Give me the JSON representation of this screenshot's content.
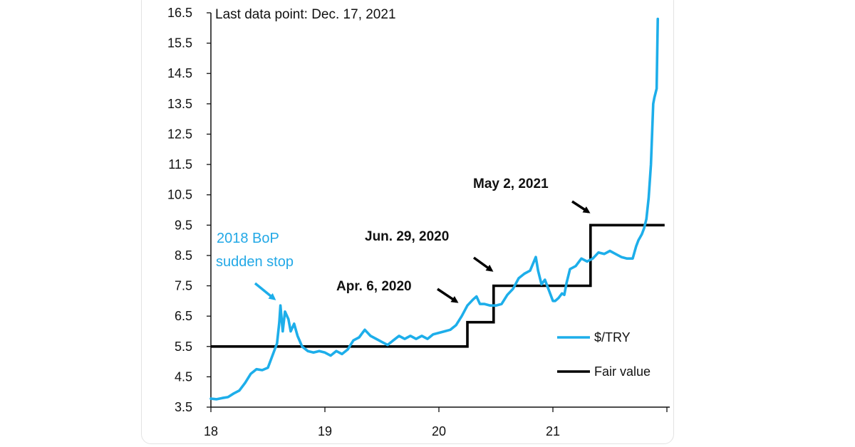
{
  "colors": {
    "series_try": "#1daeea",
    "series_fair": "#000000",
    "annotation_blue": "#22a8e6",
    "axis": "#111111"
  },
  "chart_data": {
    "type": "line",
    "title": "",
    "note": "Last data point: Dec. 17, 2021",
    "xlabel": "",
    "ylabel": "",
    "xlim": [
      18,
      22
    ],
    "ylim": [
      3.5,
      16.5
    ],
    "yticks": [
      "16.5",
      "15.5",
      "14.5",
      "13.5",
      "12.5",
      "11.5",
      "10.5",
      "9.5",
      "8.5",
      "7.5",
      "6.5",
      "5.5",
      "4.5",
      "3.5"
    ],
    "yticks_values": [
      16.5,
      15.5,
      14.5,
      13.5,
      12.5,
      11.5,
      10.5,
      9.5,
      8.5,
      7.5,
      6.5,
      5.5,
      4.5,
      3.5
    ],
    "xticks": [
      "18",
      "19",
      "20",
      "21"
    ],
    "xticks_values": [
      18,
      19,
      20,
      21
    ],
    "grid": false,
    "legend_position": "bottom-right",
    "series": [
      {
        "name": "$/TRY",
        "color": "#1daeea",
        "points": [
          [
            18.0,
            3.78
          ],
          [
            18.05,
            3.76
          ],
          [
            18.1,
            3.8
          ],
          [
            18.15,
            3.83
          ],
          [
            18.2,
            3.95
          ],
          [
            18.25,
            4.05
          ],
          [
            18.3,
            4.3
          ],
          [
            18.35,
            4.6
          ],
          [
            18.4,
            4.75
          ],
          [
            18.45,
            4.72
          ],
          [
            18.5,
            4.8
          ],
          [
            18.55,
            5.3
          ],
          [
            18.58,
            5.6
          ],
          [
            18.6,
            6.3
          ],
          [
            18.61,
            6.85
          ],
          [
            18.63,
            6.0
          ],
          [
            18.65,
            6.65
          ],
          [
            18.68,
            6.4
          ],
          [
            18.7,
            6.0
          ],
          [
            18.73,
            6.25
          ],
          [
            18.76,
            5.85
          ],
          [
            18.8,
            5.5
          ],
          [
            18.85,
            5.35
          ],
          [
            18.9,
            5.3
          ],
          [
            18.95,
            5.35
          ],
          [
            19.0,
            5.3
          ],
          [
            19.05,
            5.2
          ],
          [
            19.1,
            5.35
          ],
          [
            19.15,
            5.25
          ],
          [
            19.2,
            5.4
          ],
          [
            19.25,
            5.7
          ],
          [
            19.3,
            5.8
          ],
          [
            19.35,
            6.05
          ],
          [
            19.4,
            5.85
          ],
          [
            19.45,
            5.75
          ],
          [
            19.5,
            5.65
          ],
          [
            19.55,
            5.55
          ],
          [
            19.6,
            5.7
          ],
          [
            19.65,
            5.85
          ],
          [
            19.7,
            5.75
          ],
          [
            19.75,
            5.85
          ],
          [
            19.8,
            5.75
          ],
          [
            19.85,
            5.85
          ],
          [
            19.9,
            5.75
          ],
          [
            19.95,
            5.9
          ],
          [
            20.0,
            5.95
          ],
          [
            20.05,
            6.0
          ],
          [
            20.1,
            6.05
          ],
          [
            20.15,
            6.2
          ],
          [
            20.2,
            6.5
          ],
          [
            20.25,
            6.85
          ],
          [
            20.3,
            7.05
          ],
          [
            20.33,
            7.15
          ],
          [
            20.36,
            6.9
          ],
          [
            20.4,
            6.9
          ],
          [
            20.45,
            6.85
          ],
          [
            20.5,
            6.85
          ],
          [
            20.55,
            6.9
          ],
          [
            20.6,
            7.2
          ],
          [
            20.65,
            7.4
          ],
          [
            20.7,
            7.75
          ],
          [
            20.75,
            7.9
          ],
          [
            20.8,
            8.0
          ],
          [
            20.85,
            8.45
          ],
          [
            20.87,
            8.0
          ],
          [
            20.9,
            7.55
          ],
          [
            20.93,
            7.7
          ],
          [
            20.96,
            7.4
          ],
          [
            21.0,
            7.0
          ],
          [
            21.02,
            7.0
          ],
          [
            21.05,
            7.1
          ],
          [
            21.08,
            7.25
          ],
          [
            21.1,
            7.2
          ],
          [
            21.12,
            7.6
          ],
          [
            21.15,
            8.05
          ],
          [
            21.2,
            8.15
          ],
          [
            21.25,
            8.4
          ],
          [
            21.3,
            8.3
          ],
          [
            21.35,
            8.4
          ],
          [
            21.4,
            8.6
          ],
          [
            21.45,
            8.55
          ],
          [
            21.5,
            8.65
          ],
          [
            21.55,
            8.55
          ],
          [
            21.6,
            8.45
          ],
          [
            21.65,
            8.4
          ],
          [
            21.7,
            8.4
          ],
          [
            21.73,
            8.8
          ],
          [
            21.75,
            9.0
          ],
          [
            21.78,
            9.2
          ],
          [
            21.8,
            9.4
          ],
          [
            21.82,
            9.7
          ],
          [
            21.84,
            10.4
          ],
          [
            21.86,
            11.5
          ],
          [
            21.87,
            12.5
          ],
          [
            21.88,
            13.5
          ],
          [
            21.89,
            13.7
          ],
          [
            21.9,
            13.85
          ],
          [
            21.91,
            14.0
          ],
          [
            21.92,
            16.3
          ]
        ]
      },
      {
        "name": "Fair value",
        "color": "#000000",
        "points": [
          [
            18.0,
            5.5
          ],
          [
            20.25,
            5.5
          ],
          [
            20.25,
            6.3
          ],
          [
            20.48,
            6.3
          ],
          [
            20.48,
            7.5
          ],
          [
            21.33,
            7.5
          ],
          [
            21.33,
            9.5
          ],
          [
            21.98,
            9.5
          ]
        ]
      }
    ],
    "annotations": [
      {
        "text_lines": [
          "2018  BoP",
          "sudden stop"
        ]
      },
      {
        "text": "Apr. 6, 2020"
      },
      {
        "text": "Jun. 29, 2020"
      },
      {
        "text": "May 2, 2021"
      }
    ]
  }
}
